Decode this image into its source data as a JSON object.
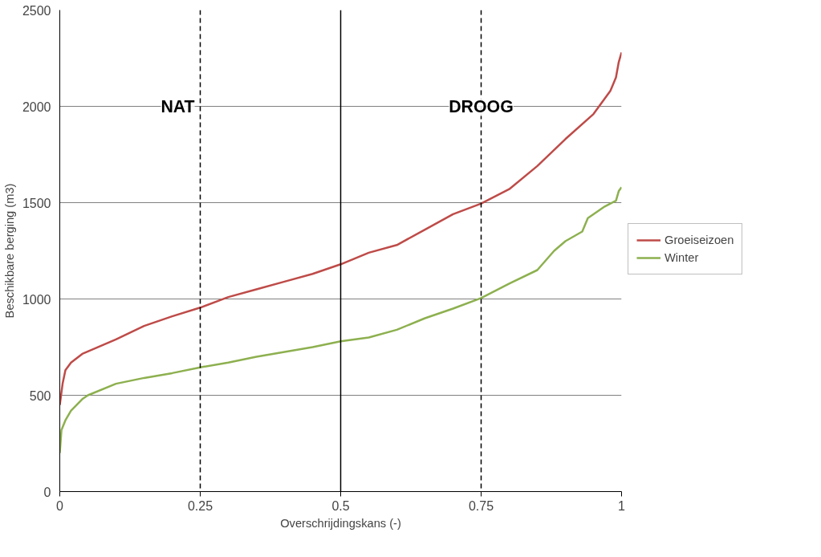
{
  "chart_data": {
    "type": "line",
    "xlabel": "Overschrijdingskans (-)",
    "ylabel": "Beschikbare berging (m3)",
    "xlim": [
      0,
      1
    ],
    "xticks": [
      0,
      0.25,
      0.5,
      0.75,
      1
    ],
    "ylim": [
      0,
      2500
    ],
    "yticks": [
      0,
      500,
      1000,
      1500,
      2000,
      2500
    ],
    "grid": "y",
    "legend": "right",
    "line_style": "solid",
    "marker": "none",
    "series": [
      {
        "name": "Groeiseizoen",
        "color": "#be4b48",
        "x": [
          0,
          0.005,
          0.01,
          0.02,
          0.04,
          0.06,
          0.1,
          0.15,
          0.2,
          0.25,
          0.3,
          0.35,
          0.4,
          0.45,
          0.5,
          0.55,
          0.6,
          0.65,
          0.7,
          0.75,
          0.8,
          0.85,
          0.9,
          0.95,
          0.98,
          0.99,
          0.995,
          1
        ],
        "values": [
          450,
          560,
          630,
          670,
          715,
          740,
          790,
          860,
          910,
          955,
          1010,
          1050,
          1090,
          1130,
          1180,
          1240,
          1280,
          1360,
          1440,
          1495,
          1570,
          1690,
          1830,
          1960,
          2080,
          2150,
          2230,
          2280
        ]
      },
      {
        "name": "Winter",
        "color": "#8db04f",
        "x": [
          0,
          0.003,
          0.01,
          0.02,
          0.04,
          0.05,
          0.1,
          0.15,
          0.2,
          0.25,
          0.3,
          0.35,
          0.4,
          0.45,
          0.5,
          0.55,
          0.6,
          0.65,
          0.7,
          0.75,
          0.8,
          0.85,
          0.88,
          0.9,
          0.93,
          0.94,
          0.97,
          0.99,
          0.995,
          1
        ],
        "values": [
          200,
          320,
          370,
          420,
          480,
          500,
          560,
          590,
          615,
          645,
          670,
          700,
          725,
          750,
          780,
          800,
          840,
          900,
          950,
          1005,
          1080,
          1150,
          1250,
          1300,
          1350,
          1420,
          1480,
          1510,
          1560,
          1580
        ]
      }
    ],
    "ref_lines": [
      {
        "axis": "x",
        "value": 0.25,
        "color": "#000000",
        "line_style": "dashed"
      },
      {
        "axis": "x",
        "value": 0.5,
        "color": "#000000",
        "line_style": "solid"
      },
      {
        "axis": "x",
        "value": 0.75,
        "color": "#000000",
        "line_style": "dashed"
      }
    ],
    "annotations": [
      "NAT",
      "DROOG"
    ]
  }
}
